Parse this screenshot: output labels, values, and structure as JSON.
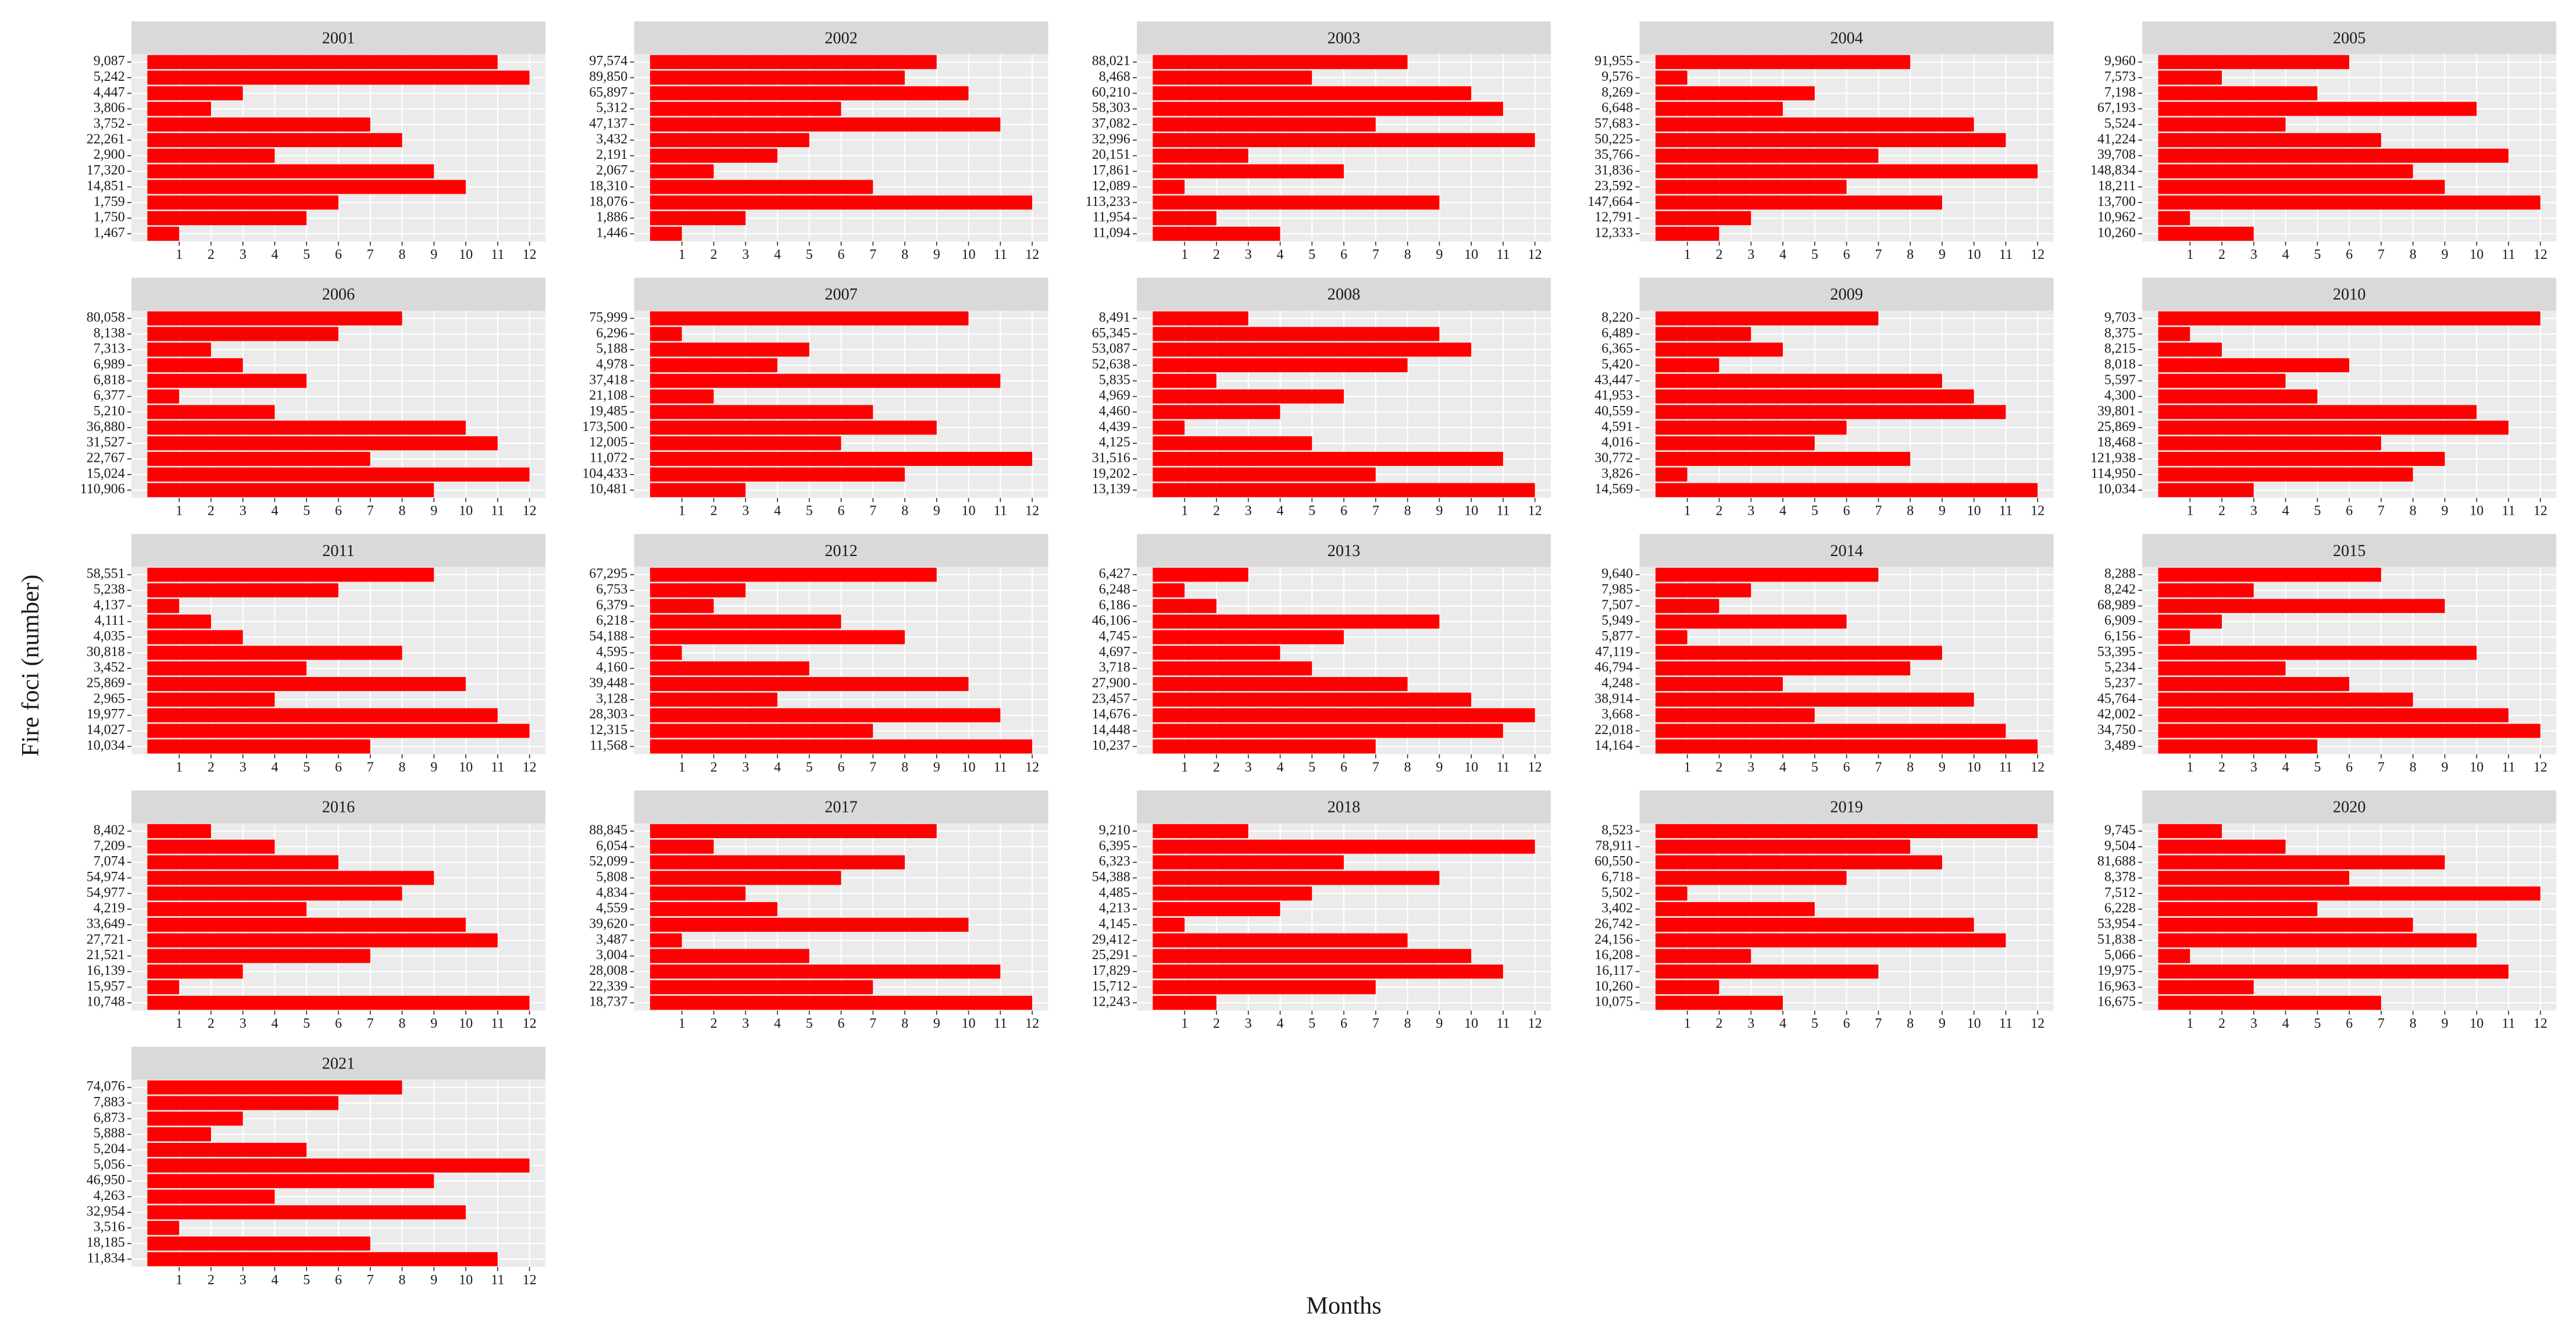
{
  "ylabel": "Fire foci (number)",
  "xlabel": "Months",
  "chart_data": [
    {
      "type": "bar",
      "title": "2001",
      "categories": [
        "9,087",
        "5,242",
        "4,447",
        "3,806",
        "3,752",
        "22,261",
        "2,900",
        "17,320",
        "14,851",
        "1,759",
        "1,750",
        "1,467"
      ],
      "values": [
        11,
        12,
        3,
        2,
        7,
        8,
        4,
        9,
        10,
        6,
        5,
        1
      ],
      "color": "#ff0000",
      "xlim": [
        -0.5,
        12.5
      ],
      "xticks": [
        1,
        2,
        3,
        4,
        5,
        6,
        7,
        8,
        9,
        10,
        11,
        12
      ],
      "grid": true
    },
    {
      "type": "bar",
      "title": "2002",
      "categories": [
        "97,574",
        "89,850",
        "65,897",
        "5,312",
        "47,137",
        "3,432",
        "2,191",
        "2,067",
        "18,310",
        "18,076",
        "1,886",
        "1,446"
      ],
      "values": [
        9,
        8,
        10,
        6,
        11,
        5,
        4,
        2,
        7,
        12,
        3,
        1
      ],
      "color": "#ff0000",
      "xlim": [
        -0.5,
        12.5
      ],
      "xticks": [
        1,
        2,
        3,
        4,
        5,
        6,
        7,
        8,
        9,
        10,
        11,
        12
      ],
      "grid": true
    },
    {
      "type": "bar",
      "title": "2003",
      "categories": [
        "88,021",
        "8,468",
        "60,210",
        "58,303",
        "37,082",
        "32,996",
        "20,151",
        "17,861",
        "12,089",
        "113,233",
        "11,954",
        "11,094"
      ],
      "values": [
        8,
        5,
        10,
        11,
        7,
        12,
        3,
        6,
        1,
        9,
        2,
        4
      ],
      "color": "#ff0000",
      "xlim": [
        -0.5,
        12.5
      ],
      "xticks": [
        1,
        2,
        3,
        4,
        5,
        6,
        7,
        8,
        9,
        10,
        11,
        12
      ],
      "grid": true
    },
    {
      "type": "bar",
      "title": "2004",
      "categories": [
        "91,955",
        "9,576",
        "8,269",
        "6,648",
        "57,683",
        "50,225",
        "35,766",
        "31,836",
        "23,592",
        "147,664",
        "12,791",
        "12,333"
      ],
      "values": [
        8,
        1,
        5,
        4,
        10,
        11,
        7,
        12,
        6,
        9,
        3,
        2
      ],
      "color": "#ff0000",
      "xlim": [
        -0.5,
        12.5
      ],
      "xticks": [
        1,
        2,
        3,
        4,
        5,
        6,
        7,
        8,
        9,
        10,
        11,
        12
      ],
      "grid": true
    },
    {
      "type": "bar",
      "title": "2005",
      "categories": [
        "9,960",
        "7,573",
        "7,198",
        "67,193",
        "5,524",
        "41,224",
        "39,708",
        "148,834",
        "18,211",
        "13,700",
        "10,962",
        "10,260"
      ],
      "values": [
        6,
        2,
        5,
        10,
        4,
        7,
        11,
        8,
        9,
        12,
        1,
        3
      ],
      "color": "#ff0000",
      "xlim": [
        -0.5,
        12.5
      ],
      "xticks": [
        1,
        2,
        3,
        4,
        5,
        6,
        7,
        8,
        9,
        10,
        11,
        12
      ],
      "grid": true
    },
    {
      "type": "bar",
      "title": "2006",
      "categories": [
        "80,058",
        "8,138",
        "7,313",
        "6,989",
        "6,818",
        "6,377",
        "5,210",
        "36,880",
        "31,527",
        "22,767",
        "15,024",
        "110,906"
      ],
      "values": [
        8,
        6,
        2,
        3,
        5,
        1,
        4,
        10,
        11,
        7,
        12,
        9
      ],
      "color": "#ff0000",
      "xlim": [
        -0.5,
        12.5
      ],
      "xticks": [
        1,
        2,
        3,
        4,
        5,
        6,
        7,
        8,
        9,
        10,
        11,
        12
      ],
      "grid": true
    },
    {
      "type": "bar",
      "title": "2007",
      "categories": [
        "75,999",
        "6,296",
        "5,188",
        "4,978",
        "37,418",
        "21,108",
        "19,485",
        "173,500",
        "12,005",
        "11,072",
        "104,433",
        "10,481"
      ],
      "values": [
        10,
        1,
        5,
        4,
        11,
        2,
        7,
        9,
        6,
        12,
        8,
        3
      ],
      "color": "#ff0000",
      "xlim": [
        -0.5,
        12.5
      ],
      "xticks": [
        1,
        2,
        3,
        4,
        5,
        6,
        7,
        8,
        9,
        10,
        11,
        12
      ],
      "grid": true
    },
    {
      "type": "bar",
      "title": "2008",
      "categories": [
        "8,491",
        "65,345",
        "53,087",
        "52,638",
        "5,835",
        "4,969",
        "4,460",
        "4,439",
        "4,125",
        "31,516",
        "19,202",
        "13,139"
      ],
      "values": [
        3,
        9,
        10,
        8,
        2,
        6,
        4,
        1,
        5,
        11,
        7,
        12
      ],
      "color": "#ff0000",
      "xlim": [
        -0.5,
        12.5
      ],
      "xticks": [
        1,
        2,
        3,
        4,
        5,
        6,
        7,
        8,
        9,
        10,
        11,
        12
      ],
      "grid": true
    },
    {
      "type": "bar",
      "title": "2009",
      "categories": [
        "8,220",
        "6,489",
        "6,365",
        "5,420",
        "43,447",
        "41,953",
        "40,559",
        "4,591",
        "4,016",
        "30,772",
        "3,826",
        "14,569"
      ],
      "values": [
        7,
        3,
        4,
        2,
        9,
        10,
        11,
        6,
        5,
        8,
        1,
        12
      ],
      "color": "#ff0000",
      "xlim": [
        -0.5,
        12.5
      ],
      "xticks": [
        1,
        2,
        3,
        4,
        5,
        6,
        7,
        8,
        9,
        10,
        11,
        12
      ],
      "grid": true
    },
    {
      "type": "bar",
      "title": "2010",
      "categories": [
        "9,703",
        "8,375",
        "8,215",
        "8,018",
        "5,597",
        "4,300",
        "39,801",
        "25,869",
        "18,468",
        "121,938",
        "114,950",
        "10,034"
      ],
      "values": [
        12,
        1,
        2,
        6,
        4,
        5,
        10,
        11,
        7,
        9,
        8,
        3
      ],
      "color": "#ff0000",
      "xlim": [
        -0.5,
        12.5
      ],
      "xticks": [
        1,
        2,
        3,
        4,
        5,
        6,
        7,
        8,
        9,
        10,
        11,
        12
      ],
      "grid": true
    },
    {
      "type": "bar",
      "title": "2011",
      "categories": [
        "58,551",
        "5,238",
        "4,137",
        "4,111",
        "4,035",
        "30,818",
        "3,452",
        "25,869",
        "2,965",
        "19,977",
        "14,027",
        "10,034"
      ],
      "values": [
        9,
        6,
        1,
        2,
        3,
        8,
        5,
        10,
        4,
        11,
        12,
        7
      ],
      "color": "#ff0000",
      "xlim": [
        -0.5,
        12.5
      ],
      "xticks": [
        1,
        2,
        3,
        4,
        5,
        6,
        7,
        8,
        9,
        10,
        11,
        12
      ],
      "grid": true
    },
    {
      "type": "bar",
      "title": "2012",
      "categories": [
        "67,295",
        "6,753",
        "6,379",
        "6,218",
        "54,188",
        "4,595",
        "4,160",
        "39,448",
        "3,128",
        "28,303",
        "12,315",
        "11,568"
      ],
      "values": [
        9,
        3,
        2,
        6,
        8,
        1,
        5,
        10,
        4,
        11,
        7,
        12
      ],
      "color": "#ff0000",
      "xlim": [
        -0.5,
        12.5
      ],
      "xticks": [
        1,
        2,
        3,
        4,
        5,
        6,
        7,
        8,
        9,
        10,
        11,
        12
      ],
      "grid": true
    },
    {
      "type": "bar",
      "title": "2013",
      "categories": [
        "6,427",
        "6,248",
        "6,186",
        "46,106",
        "4,745",
        "4,697",
        "3,718",
        "27,900",
        "23,457",
        "14,676",
        "14,448",
        "10,237"
      ],
      "values": [
        3,
        1,
        2,
        9,
        6,
        4,
        5,
        8,
        10,
        12,
        11,
        7
      ],
      "color": "#ff0000",
      "xlim": [
        -0.5,
        12.5
      ],
      "xticks": [
        1,
        2,
        3,
        4,
        5,
        6,
        7,
        8,
        9,
        10,
        11,
        12
      ],
      "grid": true
    },
    {
      "type": "bar",
      "title": "2014",
      "categories": [
        "9,640",
        "7,985",
        "7,507",
        "5,949",
        "5,877",
        "47,119",
        "46,794",
        "4,248",
        "38,914",
        "3,668",
        "22,018",
        "14,164"
      ],
      "values": [
        7,
        3,
        2,
        6,
        1,
        9,
        8,
        4,
        10,
        5,
        11,
        12
      ],
      "color": "#ff0000",
      "xlim": [
        -0.5,
        12.5
      ],
      "xticks": [
        1,
        2,
        3,
        4,
        5,
        6,
        7,
        8,
        9,
        10,
        11,
        12
      ],
      "grid": true
    },
    {
      "type": "bar",
      "title": "2015",
      "categories": [
        "8,288",
        "8,242",
        "68,989",
        "6,909",
        "6,156",
        "53,395",
        "5,234",
        "5,237",
        "45,764",
        "42,002",
        "34,750",
        "3,489"
      ],
      "values": [
        7,
        3,
        9,
        2,
        1,
        10,
        4,
        6,
        8,
        11,
        12,
        5
      ],
      "color": "#ff0000",
      "xlim": [
        -0.5,
        12.5
      ],
      "xticks": [
        1,
        2,
        3,
        4,
        5,
        6,
        7,
        8,
        9,
        10,
        11,
        12
      ],
      "grid": true
    },
    {
      "type": "bar",
      "title": "2016",
      "categories": [
        "8,402",
        "7,209",
        "7,074",
        "54,974",
        "54,977",
        "4,219",
        "33,649",
        "27,721",
        "21,521",
        "16,139",
        "15,957",
        "10,748"
      ],
      "values": [
        2,
        4,
        6,
        9,
        8,
        5,
        10,
        11,
        7,
        3,
        1,
        12
      ],
      "color": "#ff0000",
      "xlim": [
        -0.5,
        12.5
      ],
      "xticks": [
        1,
        2,
        3,
        4,
        5,
        6,
        7,
        8,
        9,
        10,
        11,
        12
      ],
      "grid": true
    },
    {
      "type": "bar",
      "title": "2017",
      "categories": [
        "88,845",
        "6,054",
        "52,099",
        "5,808",
        "4,834",
        "4,559",
        "39,620",
        "3,487",
        "3,004",
        "28,008",
        "22,339",
        "18,737"
      ],
      "values": [
        9,
        2,
        8,
        6,
        3,
        4,
        10,
        1,
        5,
        11,
        7,
        12
      ],
      "color": "#ff0000",
      "xlim": [
        -0.5,
        12.5
      ],
      "xticks": [
        1,
        2,
        3,
        4,
        5,
        6,
        7,
        8,
        9,
        10,
        11,
        12
      ],
      "grid": true
    },
    {
      "type": "bar",
      "title": "2018",
      "categories": [
        "9,210",
        "6,395",
        "6,323",
        "54,388",
        "4,485",
        "4,213",
        "4,145",
        "29,412",
        "25,291",
        "17,829",
        "15,712",
        "12,243"
      ],
      "values": [
        3,
        12,
        6,
        9,
        5,
        4,
        1,
        8,
        10,
        11,
        7,
        2
      ],
      "color": "#ff0000",
      "xlim": [
        -0.5,
        12.5
      ],
      "xticks": [
        1,
        2,
        3,
        4,
        5,
        6,
        7,
        8,
        9,
        10,
        11,
        12
      ],
      "grid": true
    },
    {
      "type": "bar",
      "title": "2019",
      "categories": [
        "8,523",
        "78,911",
        "60,550",
        "6,718",
        "5,502",
        "3,402",
        "26,742",
        "24,156",
        "16,208",
        "16,117",
        "10,260",
        "10,075"
      ],
      "values": [
        12,
        8,
        9,
        6,
        1,
        5,
        10,
        11,
        3,
        7,
        2,
        4
      ],
      "color": "#ff0000",
      "xlim": [
        -0.5,
        12.5
      ],
      "xticks": [
        1,
        2,
        3,
        4,
        5,
        6,
        7,
        8,
        9,
        10,
        11,
        12
      ],
      "grid": true
    },
    {
      "type": "bar",
      "title": "2020",
      "categories": [
        "9,745",
        "9,504",
        "81,688",
        "8,378",
        "7,512",
        "6,228",
        "53,954",
        "51,838",
        "5,066",
        "19,975",
        "16,963",
        "16,675"
      ],
      "values": [
        2,
        4,
        9,
        6,
        12,
        5,
        8,
        10,
        1,
        11,
        3,
        7
      ],
      "color": "#ff0000",
      "xlim": [
        -0.5,
        12.5
      ],
      "xticks": [
        1,
        2,
        3,
        4,
        5,
        6,
        7,
        8,
        9,
        10,
        11,
        12
      ],
      "grid": true
    },
    {
      "type": "bar",
      "title": "2021",
      "categories": [
        "74,076",
        "7,883",
        "6,873",
        "5,888",
        "5,204",
        "5,056",
        "46,950",
        "4,263",
        "32,954",
        "3,516",
        "18,185",
        "11,834"
      ],
      "values": [
        8,
        6,
        3,
        2,
        5,
        12,
        9,
        4,
        10,
        1,
        7,
        11
      ],
      "color": "#ff0000",
      "xlim": [
        -0.5,
        12.5
      ],
      "xticks": [
        1,
        2,
        3,
        4,
        5,
        6,
        7,
        8,
        9,
        10,
        11,
        12
      ],
      "grid": true
    }
  ]
}
